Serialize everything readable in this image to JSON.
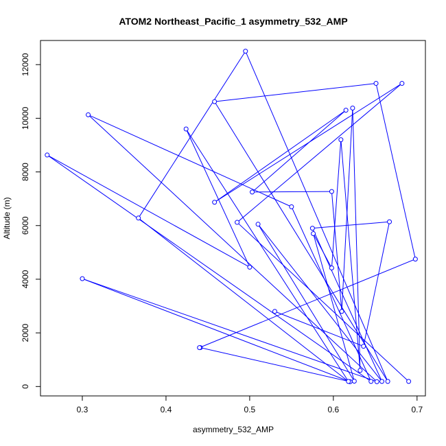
{
  "chart_data": {
    "type": "line",
    "title": "ATOM2 Northeast_Pacific_1 asymmetry_532_AMP",
    "xlabel": "asymmetry_532_AMP",
    "ylabel": "Altitude (m)",
    "xlim": [
      0.25,
      0.71
    ],
    "ylim": [
      -350,
      12900
    ],
    "x_ticks": [
      "0.3",
      "0.4",
      "0.5",
      "0.6",
      "0.7"
    ],
    "y_ticks": [
      "0",
      "2000",
      "4000",
      "6000",
      "8000",
      "10000",
      "12000"
    ],
    "grid": false,
    "legend": "none",
    "marker": "open-circle",
    "series": [
      {
        "color": "#0000ff",
        "points": [
          {
            "x": 0.441,
            "y": 1450
          },
          {
            "x": 0.62,
            "y": 180
          },
          {
            "x": 0.3,
            "y": 4020
          },
          {
            "x": 0.652,
            "y": 180
          },
          {
            "x": 0.307,
            "y": 10130
          },
          {
            "x": 0.55,
            "y": 6700
          },
          {
            "x": 0.645,
            "y": 190
          },
          {
            "x": 0.258,
            "y": 8630
          },
          {
            "x": 0.5,
            "y": 4450
          },
          {
            "x": 0.424,
            "y": 9600
          },
          {
            "x": 0.618,
            "y": 190
          },
          {
            "x": 0.367,
            "y": 6280
          },
          {
            "x": 0.495,
            "y": 12500
          },
          {
            "x": 0.665,
            "y": 190
          },
          {
            "x": 0.458,
            "y": 10620
          },
          {
            "x": 0.651,
            "y": 11300
          },
          {
            "x": 0.698,
            "y": 4750
          },
          {
            "x": 0.44,
            "y": 1450
          }
        ]
      },
      {
        "color": "#0000ff",
        "points": [
          {
            "x": 0.69,
            "y": 190
          },
          {
            "x": 0.485,
            "y": 6120
          },
          {
            "x": 0.682,
            "y": 11300
          },
          {
            "x": 0.458,
            "y": 6870
          },
          {
            "x": 0.615,
            "y": 10300
          },
          {
            "x": 0.503,
            "y": 7250
          },
          {
            "x": 0.598,
            "y": 7270
          },
          {
            "x": 0.61,
            "y": 2800
          },
          {
            "x": 0.623,
            "y": 10380
          },
          {
            "x": 0.632,
            "y": 600
          },
          {
            "x": 0.609,
            "y": 9200
          },
          {
            "x": 0.598,
            "y": 4420
          },
          {
            "x": 0.576,
            "y": 5700
          },
          {
            "x": 0.625,
            "y": 200
          },
          {
            "x": 0.51,
            "y": 6050
          },
          {
            "x": 0.658,
            "y": 190
          },
          {
            "x": 0.575,
            "y": 5900
          },
          {
            "x": 0.667,
            "y": 6140
          },
          {
            "x": 0.636,
            "y": 1500
          },
          {
            "x": 0.53,
            "y": 2800
          }
        ]
      }
    ]
  }
}
